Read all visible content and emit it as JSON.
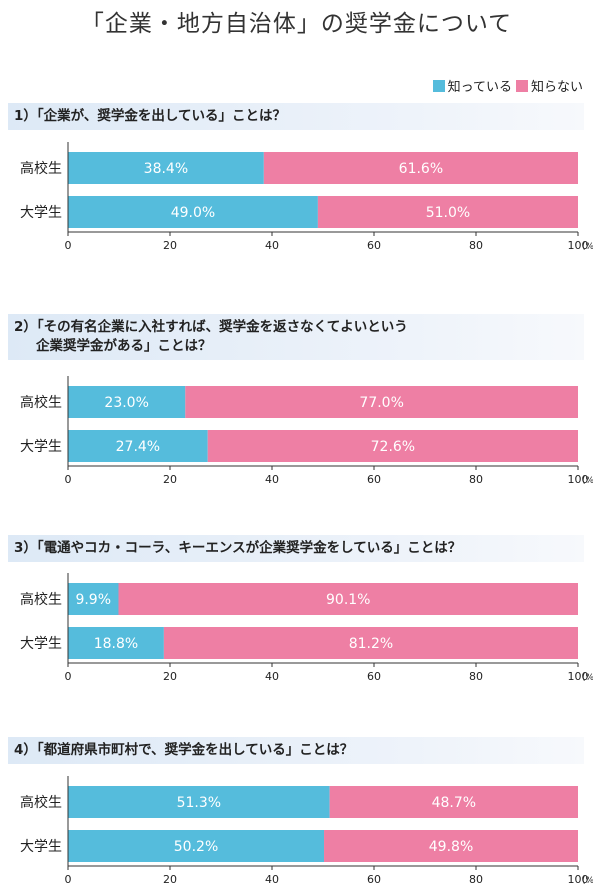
{
  "title": "「企業・地方自治体」の奨学金について",
  "colors": {
    "know": "#55bcdc",
    "dont_know": "#ee7fa4"
  },
  "legend": [
    {
      "label": "知っている",
      "color": "#55bcdc"
    },
    {
      "label": "知らない",
      "color": "#ee7fa4"
    }
  ],
  "questions": [
    {
      "line1": "1）「企業が、奨学金を出している」ことは？",
      "line2": ""
    },
    {
      "line1": "2）「その有名企業に入社すれば、奨学金を返さなくてよいという",
      "line2": "企業奨学金がある」ことは？"
    },
    {
      "line1": "3）「電通やコカ・コーラ、キーエンスが企業奨学金をしている」ことは？",
      "line2": ""
    },
    {
      "line1": "4）「都道府県市町村で、奨学金を出している」ことは？",
      "line2": ""
    }
  ],
  "chart_data": [
    {
      "type": "bar",
      "orientation": "horizontal-stacked",
      "categories": [
        "高校生",
        "大学生"
      ],
      "series": [
        {
          "name": "知っている",
          "values": [
            38.4,
            49.0
          ],
          "labels": [
            "38.4%",
            "49.0%"
          ]
        },
        {
          "name": "知らない",
          "values": [
            61.6,
            51.0
          ],
          "labels": [
            "61.6%",
            "51.0%"
          ]
        }
      ],
      "xlim": [
        0,
        100
      ],
      "xticks": [
        "0",
        "20",
        "40",
        "60",
        "80",
        "100"
      ],
      "xunit": "(%)"
    },
    {
      "type": "bar",
      "orientation": "horizontal-stacked",
      "categories": [
        "高校生",
        "大学生"
      ],
      "series": [
        {
          "name": "知っている",
          "values": [
            23.0,
            27.4
          ],
          "labels": [
            "23.0%",
            "27.4%"
          ]
        },
        {
          "name": "知らない",
          "values": [
            77.0,
            72.6
          ],
          "labels": [
            "77.0%",
            "72.6%"
          ]
        }
      ],
      "xlim": [
        0,
        100
      ],
      "xticks": [
        "0",
        "20",
        "40",
        "60",
        "80",
        "100"
      ],
      "xunit": "(%)"
    },
    {
      "type": "bar",
      "orientation": "horizontal-stacked",
      "categories": [
        "高校生",
        "大学生"
      ],
      "series": [
        {
          "name": "知っている",
          "values": [
            9.9,
            18.8
          ],
          "labels": [
            "9.9%",
            "18.8%"
          ]
        },
        {
          "name": "知らない",
          "values": [
            90.1,
            81.2
          ],
          "labels": [
            "90.1%",
            "81.2%"
          ]
        }
      ],
      "xlim": [
        0,
        100
      ],
      "xticks": [
        "0",
        "20",
        "40",
        "60",
        "80",
        "100"
      ],
      "xunit": "(%)"
    },
    {
      "type": "bar",
      "orientation": "horizontal-stacked",
      "categories": [
        "高校生",
        "大学生"
      ],
      "series": [
        {
          "name": "知っている",
          "values": [
            51.3,
            50.2
          ],
          "labels": [
            "51.3%",
            "50.2%"
          ]
        },
        {
          "name": "知らない",
          "values": [
            48.7,
            49.8
          ],
          "labels": [
            "48.7%",
            "49.8%"
          ]
        }
      ],
      "xlim": [
        0,
        100
      ],
      "xticks": [
        "0",
        "20",
        "40",
        "60",
        "80",
        "100"
      ],
      "xunit": "(%)"
    }
  ]
}
